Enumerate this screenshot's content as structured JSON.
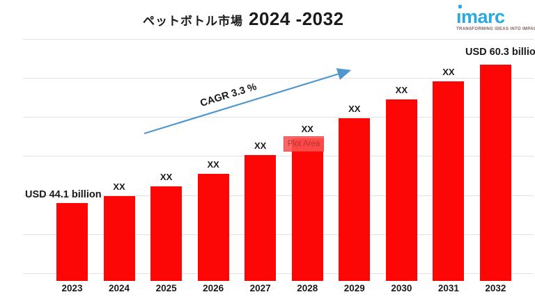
{
  "header": {
    "title_jp": "ペットボトル市場",
    "title_range": "2024 -2032",
    "logo": {
      "text": "ımarc",
      "tagline": "TRANSFORMING IDEAS INTO IMPACT",
      "color": "#2aa9e1"
    }
  },
  "annotations": {
    "start_label": "USD 44.1 billion",
    "end_label": "USD 60.3 billion",
    "cagr_label": "CAGR 3.3 %",
    "plot_area_tooltip": "Plot Area"
  },
  "chart_data": {
    "type": "bar",
    "title": "ペットボトル市場 2024 -2032",
    "unit": "USD billion",
    "categories": [
      "2023",
      "2024",
      "2025",
      "2026",
      "2027",
      "2028",
      "2029",
      "2030",
      "2031",
      "2032"
    ],
    "values": [
      44.1,
      44.9,
      46.1,
      47.5,
      49.7,
      51.7,
      54.0,
      56.2,
      58.3,
      60.3
    ],
    "display_labels": [
      "USD 44.1 billion",
      "XX",
      "XX",
      "XX",
      "XX",
      "XX",
      "XX",
      "XX",
      "XX",
      "USD 60.3 billion"
    ],
    "known_values": {
      "2023": 44.1,
      "2032": 60.3
    },
    "cagr_percent": 3.3,
    "ylim": [
      35,
      63.3
    ],
    "grid": true,
    "legend": "none",
    "bar_color": "#fc0606",
    "arrow_color": "#4f97cd"
  }
}
